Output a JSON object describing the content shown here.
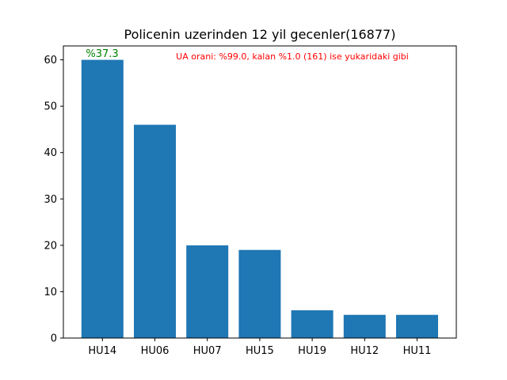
{
  "chart_data": {
    "type": "bar",
    "title": "Policenin uzerinden 12 yil gecenler(16877)",
    "xlabel": "",
    "ylabel": "",
    "categories": [
      "HU14",
      "HU06",
      "HU07",
      "HU15",
      "HU19",
      "HU12",
      "HU11"
    ],
    "values": [
      60,
      46,
      20,
      19,
      6,
      5,
      5
    ],
    "ylim": [
      0,
      63
    ],
    "yticks": [
      0,
      10,
      20,
      30,
      40,
      50,
      60
    ],
    "grid": false,
    "bar_color": "#1f77b4",
    "annotations": {
      "top_bar_label": "%37.3",
      "top_bar_label_color": "#008000",
      "note": "UA orani: %99.0, kalan %1.0 (161) ise yukaridaki gibi",
      "note_color": "#ff0000"
    }
  }
}
